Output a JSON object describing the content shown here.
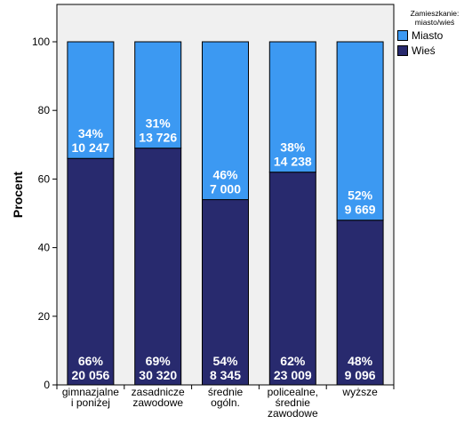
{
  "colors": {
    "miasto": "#3c99f2",
    "wies": "#282a6e",
    "plot_bg": "#f0f0f0"
  },
  "legend": {
    "title_line1": "Zamieszkanie:",
    "title_line2": "miasto/wieś",
    "items": [
      {
        "label": "Miasto",
        "color": "#3c99f2"
      },
      {
        "label": "Wieś",
        "color": "#282a6e"
      }
    ]
  },
  "chart_data": {
    "type": "bar",
    "stacked": true,
    "ylabel": "Procent",
    "xlabel": "",
    "ylim": [
      0,
      100
    ],
    "yticks": [
      0,
      20,
      40,
      60,
      80,
      100
    ],
    "grid": false,
    "legend_position": "top-right",
    "categories": [
      [
        "gimnazjalne",
        "i poniżej"
      ],
      [
        "zasadnicze",
        "zawodowe"
      ],
      [
        "średnie",
        "ogóln."
      ],
      [
        "policealne,",
        "średnie",
        "zawodowe"
      ],
      [
        "wyższe"
      ]
    ],
    "series": [
      {
        "name": "Wieś",
        "values": [
          66,
          69,
          54,
          62,
          48
        ],
        "percent_labels": [
          "66%",
          "69%",
          "54%",
          "62%",
          "48%"
        ],
        "count_labels": [
          "20 056",
          "30 320",
          "8 345",
          "23 009",
          "9 096"
        ]
      },
      {
        "name": "Miasto",
        "values": [
          34,
          31,
          46,
          38,
          52
        ],
        "percent_labels": [
          "34%",
          "31%",
          "46%",
          "38%",
          "52%"
        ],
        "count_labels": [
          "10 247",
          "13 726",
          "7 000",
          "14 238",
          "9 669"
        ]
      }
    ]
  }
}
